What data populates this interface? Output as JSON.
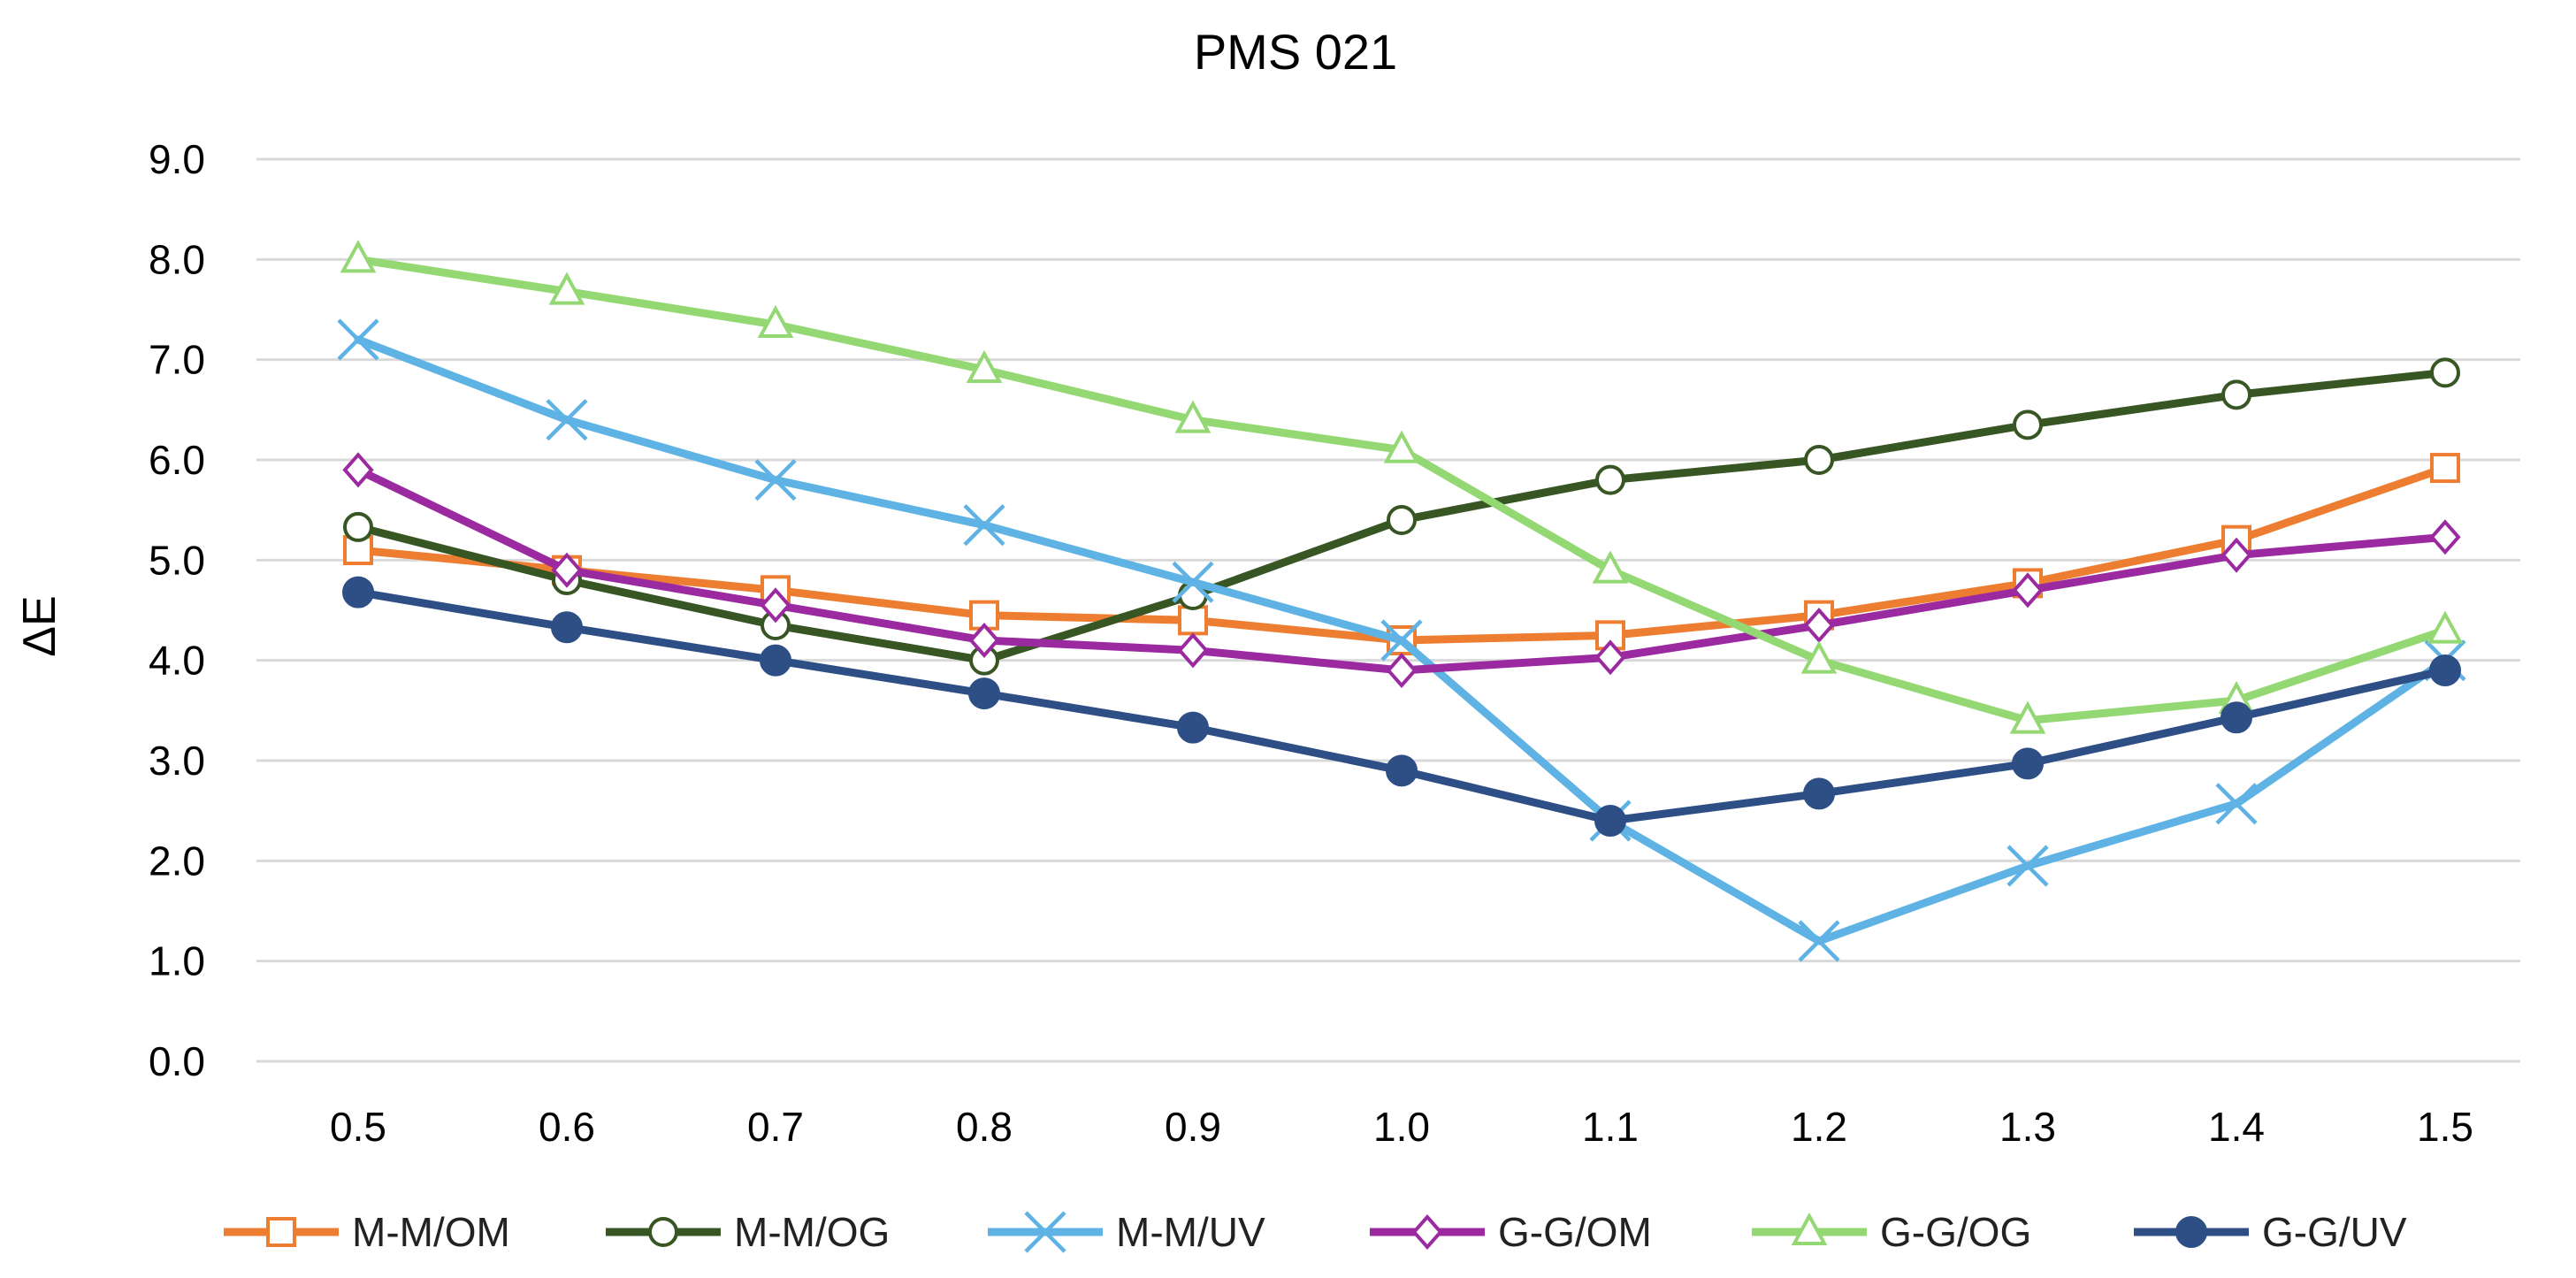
{
  "chart_data": {
    "type": "line",
    "title": "PMS 021",
    "xlabel": "",
    "ylabel": "ΔE",
    "categories": [
      "0.5",
      "0.6",
      "0.7",
      "0.8",
      "0.9",
      "1.0",
      "1.1",
      "1.2",
      "1.3",
      "1.4",
      "1.5"
    ],
    "yticks": [
      "0.0",
      "1.0",
      "2.0",
      "3.0",
      "4.0",
      "5.0",
      "6.0",
      "7.0",
      "8.0",
      "9.0"
    ],
    "ylim": [
      0,
      9
    ],
    "grid": true,
    "legend_position": "bottom",
    "series": [
      {
        "name": "M-M/OM",
        "color": "#ed7d31",
        "marker": "square-open",
        "values": [
          5.1,
          4.9,
          4.7,
          4.45,
          4.4,
          4.2,
          4.25,
          4.45,
          4.77,
          5.2,
          5.92
        ]
      },
      {
        "name": "M-M/OG",
        "color": "#375623",
        "marker": "circle-open",
        "values": [
          5.33,
          4.8,
          4.35,
          4.0,
          4.65,
          5.4,
          5.8,
          6.0,
          6.35,
          6.65,
          6.87
        ]
      },
      {
        "name": "M-M/UV",
        "color": "#5eb3e4",
        "marker": "x",
        "values": [
          7.2,
          6.4,
          5.8,
          5.35,
          4.78,
          4.2,
          2.4,
          1.2,
          1.95,
          2.57,
          4.0
        ]
      },
      {
        "name": "G-G/OM",
        "color": "#9b2aa0",
        "marker": "diamond-open",
        "values": [
          5.9,
          4.9,
          4.55,
          4.2,
          4.1,
          3.9,
          4.03,
          4.35,
          4.7,
          5.05,
          5.23
        ]
      },
      {
        "name": "G-G/OG",
        "color": "#94d873",
        "marker": "triangle-open",
        "values": [
          8.0,
          7.68,
          7.35,
          6.9,
          6.4,
          6.1,
          4.9,
          4.0,
          3.4,
          3.6,
          4.3
        ]
      },
      {
        "name": "G-G/UV",
        "color": "#2e4e86",
        "marker": "circle-filled",
        "values": [
          4.68,
          4.33,
          4.0,
          3.67,
          3.33,
          2.9,
          2.4,
          2.67,
          2.97,
          3.43,
          3.9
        ]
      }
    ]
  }
}
